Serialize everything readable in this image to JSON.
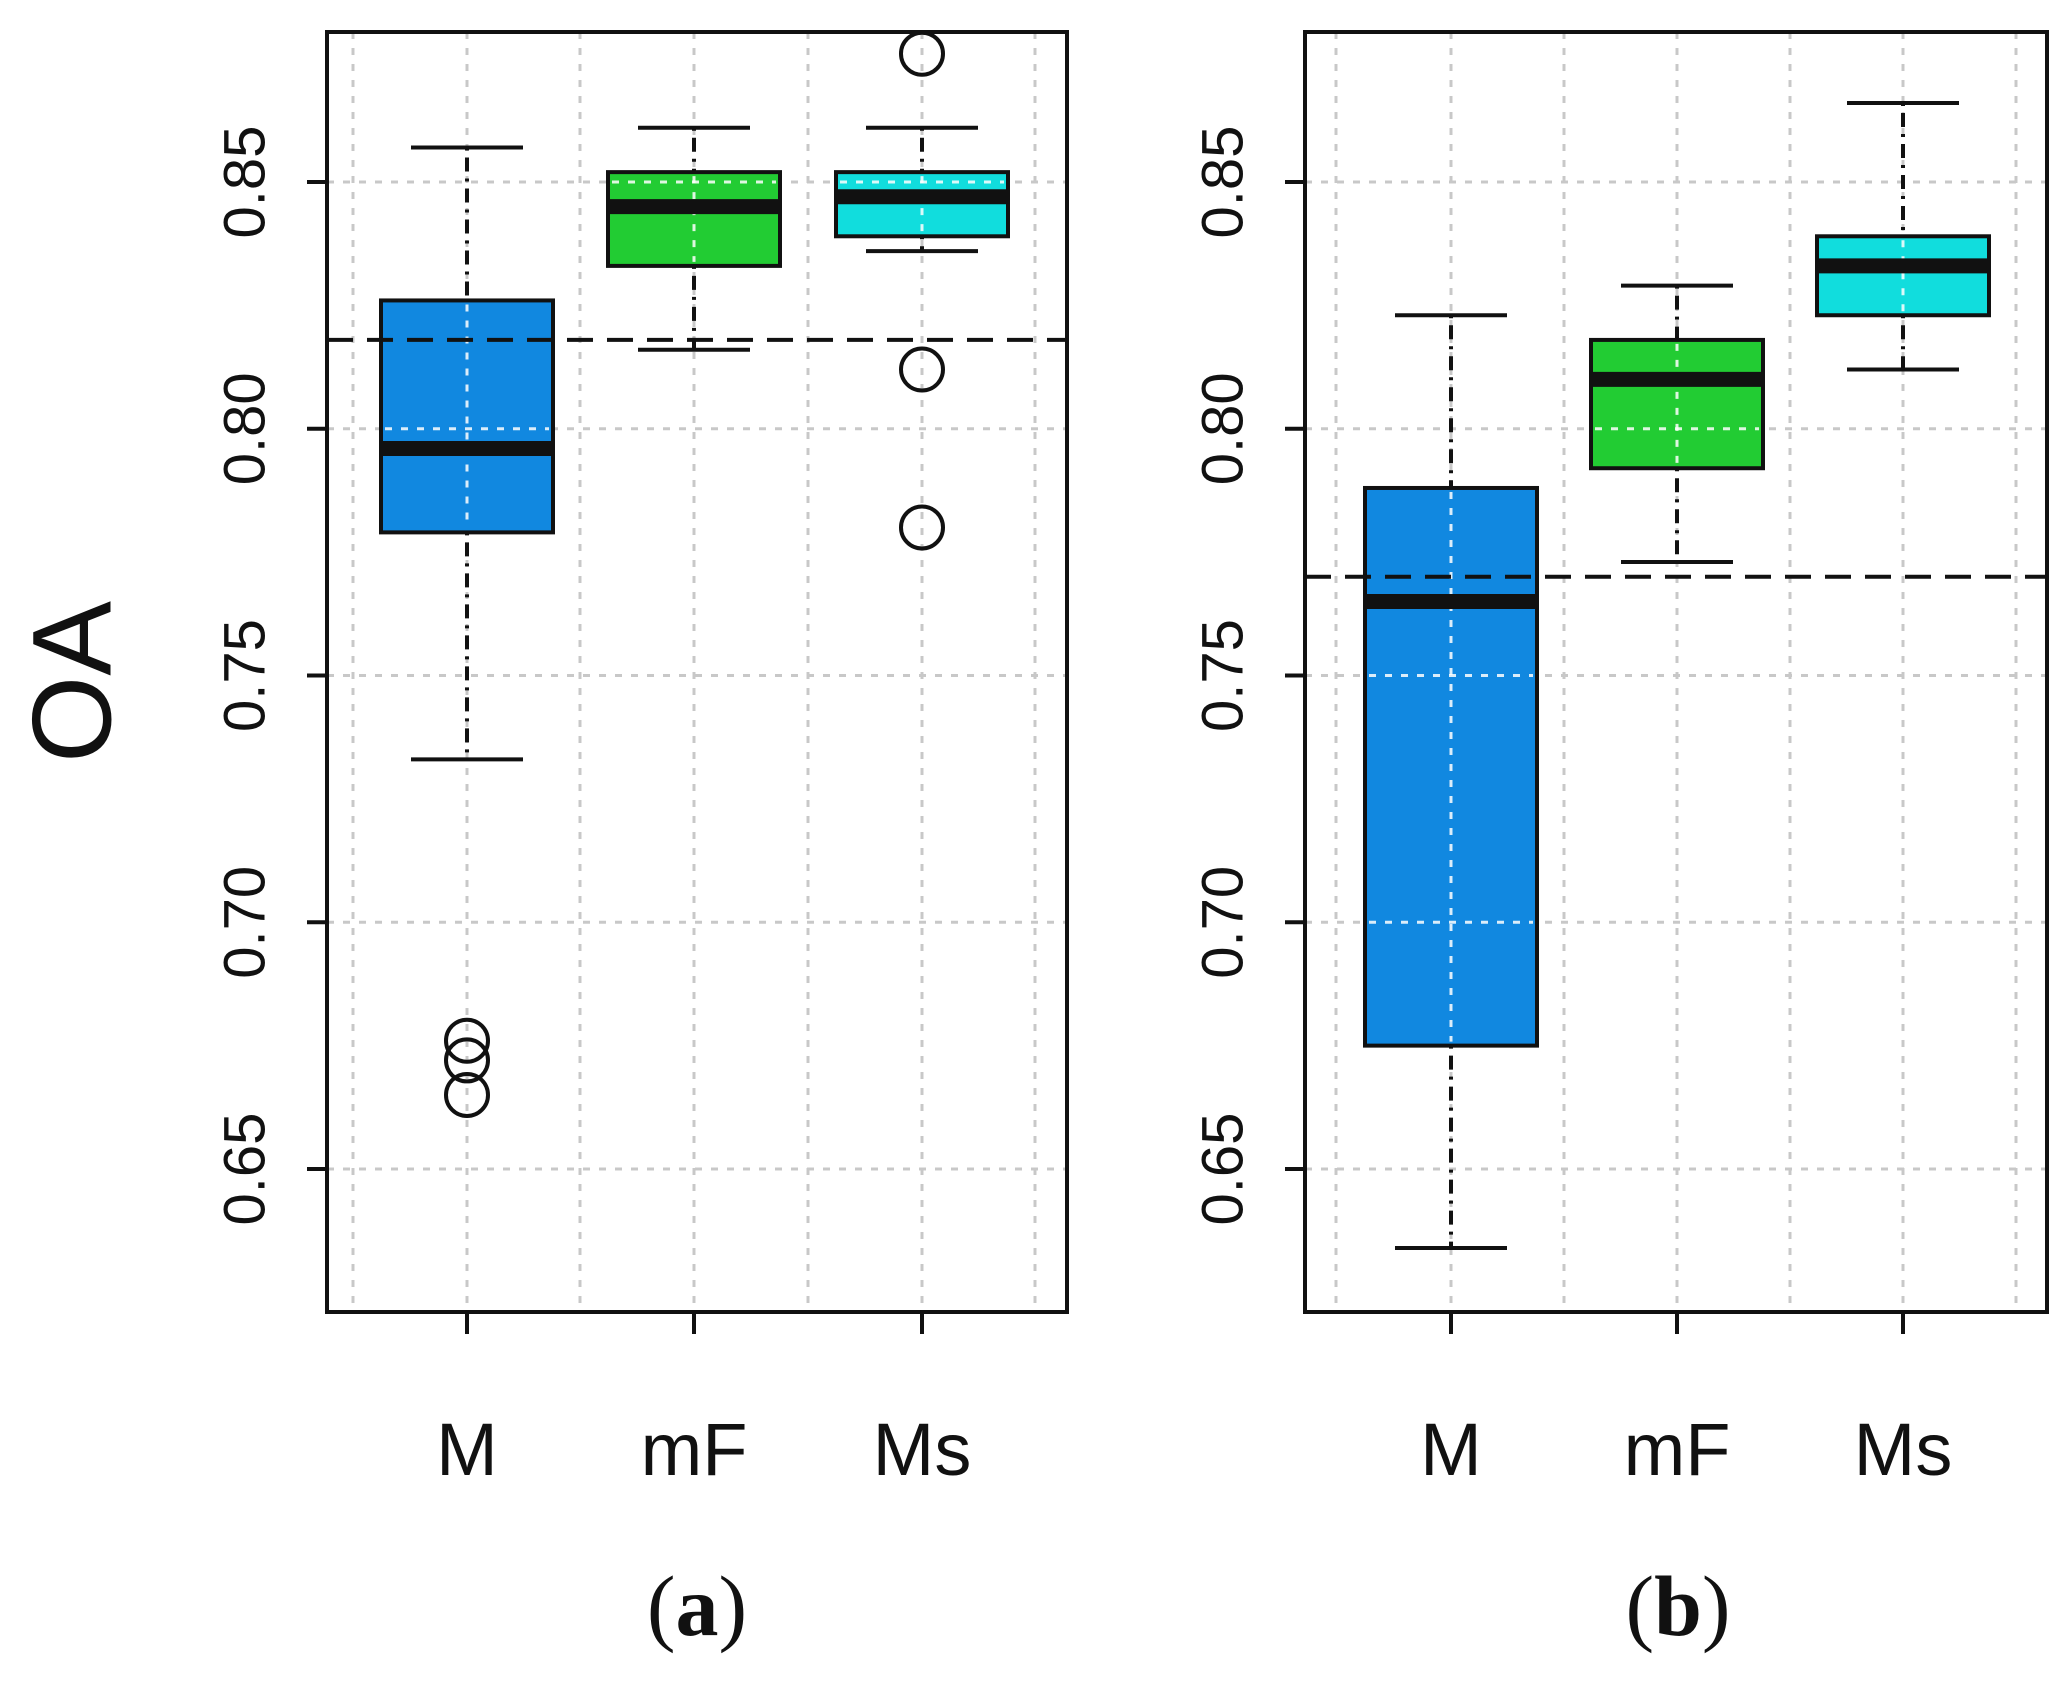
{
  "chart_data": [
    {
      "type": "box",
      "panel_label": "a",
      "ylabel": "OA",
      "ylim": [
        0.62,
        0.88
      ],
      "yticks": [
        "0.65",
        "0.70",
        "0.75",
        "0.80",
        "0.85"
      ],
      "ytick_values": [
        0.65,
        0.7,
        0.75,
        0.8,
        0.85
      ],
      "categories": [
        "M",
        "mF",
        "Ms"
      ],
      "colors": [
        "#1188e0",
        "#22cc33",
        "#11dddd"
      ],
      "reference_line": 0.818,
      "grid": true,
      "boxes": [
        {
          "whisker_low": 0.733,
          "q1": 0.779,
          "median": 0.796,
          "q3": 0.826,
          "whisker_high": 0.857,
          "outliers": [
            0.676,
            0.672,
            0.665
          ]
        },
        {
          "whisker_low": 0.816,
          "q1": 0.833,
          "median": 0.845,
          "q3": 0.852,
          "whisker_high": 0.861,
          "outliers": []
        },
        {
          "whisker_low": 0.836,
          "q1": 0.839,
          "median": 0.847,
          "q3": 0.852,
          "whisker_high": 0.861,
          "outliers": [
            0.876,
            0.812,
            0.78
          ]
        }
      ]
    },
    {
      "type": "box",
      "panel_label": "b",
      "ylabel": "",
      "ylim": [
        0.62,
        0.88
      ],
      "yticks": [
        "0.65",
        "0.70",
        "0.75",
        "0.80",
        "0.85"
      ],
      "ytick_values": [
        0.65,
        0.7,
        0.75,
        0.8,
        0.85
      ],
      "categories": [
        "M",
        "mF",
        "Ms"
      ],
      "colors": [
        "#1188e0",
        "#22cc33",
        "#11dddd"
      ],
      "reference_line": 0.77,
      "grid": true,
      "boxes": [
        {
          "whisker_low": 0.634,
          "q1": 0.675,
          "median": 0.765,
          "q3": 0.788,
          "whisker_high": 0.823,
          "outliers": []
        },
        {
          "whisker_low": 0.773,
          "q1": 0.792,
          "median": 0.81,
          "q3": 0.818,
          "whisker_high": 0.829,
          "outliers": []
        },
        {
          "whisker_low": 0.812,
          "q1": 0.823,
          "median": 0.833,
          "q3": 0.839,
          "whisker_high": 0.866,
          "outliers": []
        }
      ]
    }
  ]
}
